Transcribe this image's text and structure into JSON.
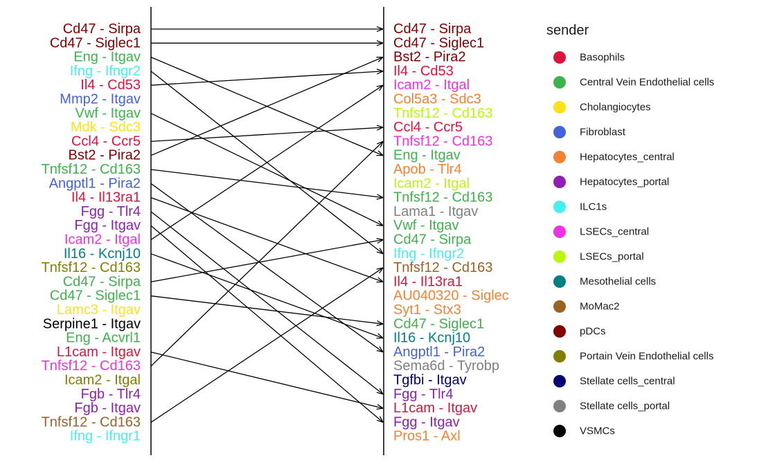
{
  "chart_data": {
    "type": "line",
    "title": "",
    "legend": {
      "title": "sender",
      "placement": "right",
      "entries": [
        {
          "name": "Basophils",
          "color": "#DC143C"
        },
        {
          "name": "Central Vein Endothelial cells",
          "color": "#3CB44B"
        },
        {
          "name": "Cholangiocytes",
          "color": "#FFE119"
        },
        {
          "name": "Fibroblast",
          "color": "#4363D8"
        },
        {
          "name": "Hepatocytes_central",
          "color": "#F58231"
        },
        {
          "name": "Hepatocytes_portal",
          "color": "#911EB4"
        },
        {
          "name": "ILC1s",
          "color": "#46F0F0"
        },
        {
          "name": "LSECs_central",
          "color": "#F032E6"
        },
        {
          "name": "LSECs_portal",
          "color": "#BCF60C"
        },
        {
          "name": "Mesothelial cells",
          "color": "#008080"
        },
        {
          "name": "MoMac2",
          "color": "#9A6324"
        },
        {
          "name": "pDCs",
          "color": "#800000"
        },
        {
          "name": "Portain Vein Endothelial cells",
          "color": "#808000"
        },
        {
          "name": "Stellate cells_central",
          "color": "#000075"
        },
        {
          "name": "Stellate cells_portal",
          "color": "#808080"
        },
        {
          "name": "VSMCs",
          "color": "#000000"
        }
      ]
    },
    "left_pairs": [
      {
        "label": "Cd47 - Sirpa",
        "sender": "pDCs"
      },
      {
        "label": "Cd47 - Siglec1",
        "sender": "pDCs"
      },
      {
        "label": "Eng - Itgav",
        "sender": "Central Vein Endothelial cells"
      },
      {
        "label": "Ifng - Ifngr2",
        "sender": "ILC1s"
      },
      {
        "label": "Il4 - Cd53",
        "sender": "Basophils"
      },
      {
        "label": "Mmp2 - Itgav",
        "sender": "Fibroblast"
      },
      {
        "label": "Vwf - Itgav",
        "sender": "Central Vein Endothelial cells"
      },
      {
        "label": "Mdk - Sdc3",
        "sender": "Cholangiocytes"
      },
      {
        "label": "Ccl4 - Ccr5",
        "sender": "Basophils"
      },
      {
        "label": "Bst2 - Pira2",
        "sender": "pDCs"
      },
      {
        "label": "Tnfsf12 - Cd163",
        "sender": "Central Vein Endothelial cells"
      },
      {
        "label": "Angptl1 - Pira2",
        "sender": "Fibroblast"
      },
      {
        "label": "Il4 - Il13ra1",
        "sender": "Basophils"
      },
      {
        "label": "Fgg - Tlr4",
        "sender": "Hepatocytes_portal"
      },
      {
        "label": "Fgg - Itgav",
        "sender": "Hepatocytes_portal"
      },
      {
        "label": "Icam2 - Itgal",
        "sender": "LSECs_central"
      },
      {
        "label": "Il16 - Kcnj10",
        "sender": "Mesothelial cells"
      },
      {
        "label": "Tnfsf12 - Cd163",
        "sender": "Portain Vein Endothelial cells"
      },
      {
        "label": "Cd47 - Sirpa",
        "sender": "Central Vein Endothelial cells"
      },
      {
        "label": "Cd47 - Siglec1",
        "sender": "Central Vein Endothelial cells"
      },
      {
        "label": "Lamc3 - Itgav",
        "sender": "Cholangiocytes"
      },
      {
        "label": "Serpine1 - Itgav",
        "sender": "VSMCs"
      },
      {
        "label": "Eng - Acvrl1",
        "sender": "Central Vein Endothelial cells"
      },
      {
        "label": "L1cam - Itgav",
        "sender": "Basophils"
      },
      {
        "label": "Tnfsf12 - Cd163",
        "sender": "LSECs_central"
      },
      {
        "label": "Icam2 - Itgal",
        "sender": "Portain Vein Endothelial cells"
      },
      {
        "label": "Fgb - Tlr4",
        "sender": "Hepatocytes_portal"
      },
      {
        "label": "Fgb - Itgav",
        "sender": "Hepatocytes_portal"
      },
      {
        "label": "Tnfsf12 - Cd163",
        "sender": "MoMac2"
      },
      {
        "label": "Ifng - Ifngr1",
        "sender": "ILC1s"
      }
    ],
    "right_pairs": [
      {
        "label": "Cd47 - Sirpa",
        "sender": "pDCs"
      },
      {
        "label": "Cd47 - Siglec1",
        "sender": "pDCs"
      },
      {
        "label": "Bst2 - Pira2",
        "sender": "pDCs"
      },
      {
        "label": "Il4 - Cd53",
        "sender": "Basophils"
      },
      {
        "label": "Icam2 - Itgal",
        "sender": "LSECs_central"
      },
      {
        "label": "Col5a3 - Sdc3",
        "sender": "Hepatocytes_central"
      },
      {
        "label": "Tnfsf12 - Cd163",
        "sender": "LSECs_portal"
      },
      {
        "label": "Ccl4 - Ccr5",
        "sender": "Basophils"
      },
      {
        "label": "Tnfsf12 - Cd163",
        "sender": "LSECs_central"
      },
      {
        "label": "Eng - Itgav",
        "sender": "Central Vein Endothelial cells"
      },
      {
        "label": "Apob - Tlr4",
        "sender": "Hepatocytes_central"
      },
      {
        "label": "Icam2 - Itgal",
        "sender": "LSECs_portal"
      },
      {
        "label": "Tnfsf12 - Cd163",
        "sender": "Central Vein Endothelial cells"
      },
      {
        "label": "Lama1 - Itgav",
        "sender": "Stellate cells_portal"
      },
      {
        "label": "Vwf - Itgav",
        "sender": "Central Vein Endothelial cells"
      },
      {
        "label": "Cd47 - Sirpa",
        "sender": "Central Vein Endothelial cells"
      },
      {
        "label": "Ifng - Ifngr2",
        "sender": "ILC1s"
      },
      {
        "label": "Tnfsf12 - Cd163",
        "sender": "MoMac2"
      },
      {
        "label": "Il4 - Il13ra1",
        "sender": "Basophils"
      },
      {
        "label": "AU040320 - Siglec",
        "sender": "Hepatocytes_central"
      },
      {
        "label": "Syt1 - Stx3",
        "sender": "Hepatocytes_central"
      },
      {
        "label": "Cd47 - Siglec1",
        "sender": "Central Vein Endothelial cells"
      },
      {
        "label": "Il16 - Kcnj10",
        "sender": "Mesothelial cells"
      },
      {
        "label": "Angptl1 - Pira2",
        "sender": "Fibroblast"
      },
      {
        "label": "Sema6d - Tyrobp",
        "sender": "Stellate cells_portal"
      },
      {
        "label": "Tgfbi - Itgav",
        "sender": "Stellate cells_central"
      },
      {
        "label": "Fgg - Tlr4",
        "sender": "Hepatocytes_portal"
      },
      {
        "label": "L1cam - Itgav",
        "sender": "Basophils"
      },
      {
        "label": "Fgg - Itgav",
        "sender": "Hepatocytes_portal"
      },
      {
        "label": "Pros1 - Axl",
        "sender": "Hepatocytes_central"
      }
    ],
    "links": [
      {
        "from_rank": 1,
        "to_rank": 1
      },
      {
        "from_rank": 2,
        "to_rank": 2
      },
      {
        "from_rank": 3,
        "to_rank": 10
      },
      {
        "from_rank": 4,
        "to_rank": 17
      },
      {
        "from_rank": 5,
        "to_rank": 4
      },
      {
        "from_rank": 7,
        "to_rank": 15
      },
      {
        "from_rank": 9,
        "to_rank": 8
      },
      {
        "from_rank": 10,
        "to_rank": 3
      },
      {
        "from_rank": 11,
        "to_rank": 13
      },
      {
        "from_rank": 12,
        "to_rank": 24
      },
      {
        "from_rank": 13,
        "to_rank": 19
      },
      {
        "from_rank": 14,
        "to_rank": 27
      },
      {
        "from_rank": 15,
        "to_rank": 29
      },
      {
        "from_rank": 16,
        "to_rank": 5
      },
      {
        "from_rank": 17,
        "to_rank": 23
      },
      {
        "from_rank": 19,
        "to_rank": 16
      },
      {
        "from_rank": 20,
        "to_rank": 22
      },
      {
        "from_rank": 24,
        "to_rank": 28
      },
      {
        "from_rank": 25,
        "to_rank": 9
      },
      {
        "from_rank": 29,
        "to_rank": 18
      }
    ]
  }
}
